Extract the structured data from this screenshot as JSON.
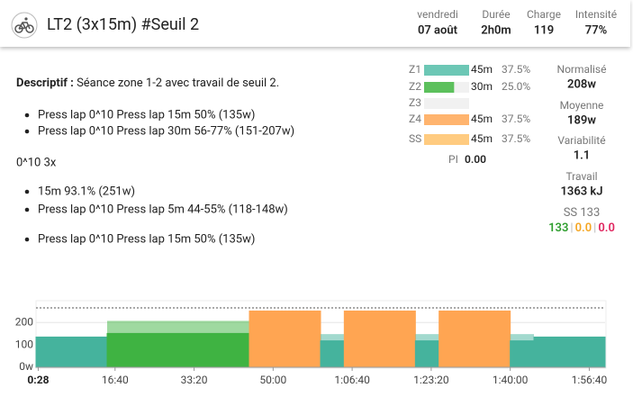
{
  "header": {
    "title": "LT2 (3x15m) #Seuil 2",
    "stats": [
      {
        "label": "vendredi",
        "value": "07 août"
      },
      {
        "label": "Durée",
        "value": "2h0m"
      },
      {
        "label": "Charge",
        "value": "119"
      },
      {
        "label": "Intensité",
        "value": "77%"
      }
    ]
  },
  "description": {
    "label": "Descriptif :",
    "text": "Séance zone 1-2 avec travail de seuil 2.",
    "steps_1": [
      "Press lap 0^10 Press lap 15m 50% (135w)",
      "Press lap 0^10 Press lap 30m 56-77% (151-207w)"
    ],
    "repeat": "0^10 3x",
    "steps_2": [
      "15m 93.1% (251w)",
      "Press lap 0^10 Press lap 5m 44-55% (118-148w)"
    ],
    "steps_3": [
      "Press lap 0^10 Press lap 15m 50% (135w)"
    ]
  },
  "zones": {
    "rows": [
      {
        "name": "Z1",
        "time": "45m",
        "percent": 37.5,
        "percent_label": "37.5%",
        "color": "#6cc7b5"
      },
      {
        "name": "Z2",
        "time": "30m",
        "percent": 25,
        "percent_label": "25.0%",
        "color": "#5cc05c"
      },
      {
        "name": "Z3",
        "time": null,
        "percent": null,
        "percent_label": null,
        "color": "#f2d24b"
      },
      {
        "name": "Z4",
        "time": "45m",
        "percent": 37.5,
        "percent_label": "37.5%",
        "color": "#ffb46e"
      },
      {
        "name": "SS",
        "time": "45m",
        "percent": 37.5,
        "percent_label": "37.5%",
        "color": "#ffcb80"
      }
    ],
    "pi_label": "PI",
    "pi_value": "0.00"
  },
  "metrics": [
    {
      "label": "Normalisé",
      "value": "208w"
    },
    {
      "label": "Moyenne",
      "value": "189w"
    },
    {
      "label": "Variabilité",
      "value": "1.1"
    },
    {
      "label": "Travail",
      "value": "1363 kJ"
    }
  ],
  "ss": {
    "label": "SS",
    "value": "133",
    "parts": [
      {
        "value": "133",
        "color": "#2e9e2e"
      },
      {
        "value": "0.0",
        "color": "#f5a623"
      },
      {
        "value": "0.0",
        "color": "#e0245e"
      }
    ]
  },
  "chart_data": {
    "type": "workout",
    "xlim": [
      0,
      7200
    ],
    "ylim": [
      0,
      265
    ],
    "grid": true,
    "xticks": [
      {
        "value": 28,
        "label": "0:28"
      },
      {
        "value": 1000,
        "label": "16:40"
      },
      {
        "value": 2000,
        "label": "33:20"
      },
      {
        "value": 3000,
        "label": "50:00"
      },
      {
        "value": 4000,
        "label": "1:06:40"
      },
      {
        "value": 5000,
        "label": "1:23:20"
      },
      {
        "value": 6000,
        "label": "1:40:00"
      },
      {
        "value": 7000,
        "label": "1:56:40"
      }
    ],
    "yticks": [
      {
        "value": 0,
        "label": "0w"
      },
      100,
      200
    ],
    "intervals": [
      {
        "start": 0,
        "end": 900,
        "low": 135,
        "high": null,
        "color": "#45b39d"
      },
      {
        "start": 900,
        "end": 2700,
        "low": 151,
        "high": 207,
        "color": "#3fb342"
      },
      {
        "start": 2700,
        "end": 3600,
        "low": 251,
        "high": null,
        "color": "#ffa552"
      },
      {
        "start": 3600,
        "end": 3900,
        "low": 118,
        "high": 148,
        "color": "#45b39d"
      },
      {
        "start": 3900,
        "end": 4800,
        "low": 251,
        "high": null,
        "color": "#ffa552"
      },
      {
        "start": 4800,
        "end": 5100,
        "low": 118,
        "high": 148,
        "color": "#45b39d"
      },
      {
        "start": 5100,
        "end": 6000,
        "low": 251,
        "high": null,
        "color": "#ffa552"
      },
      {
        "start": 6000,
        "end": 6300,
        "low": 118,
        "high": 148,
        "color": "#45b39d"
      },
      {
        "start": 6300,
        "end": 7200,
        "low": 135,
        "high": null,
        "color": "#45b39d"
      }
    ]
  }
}
